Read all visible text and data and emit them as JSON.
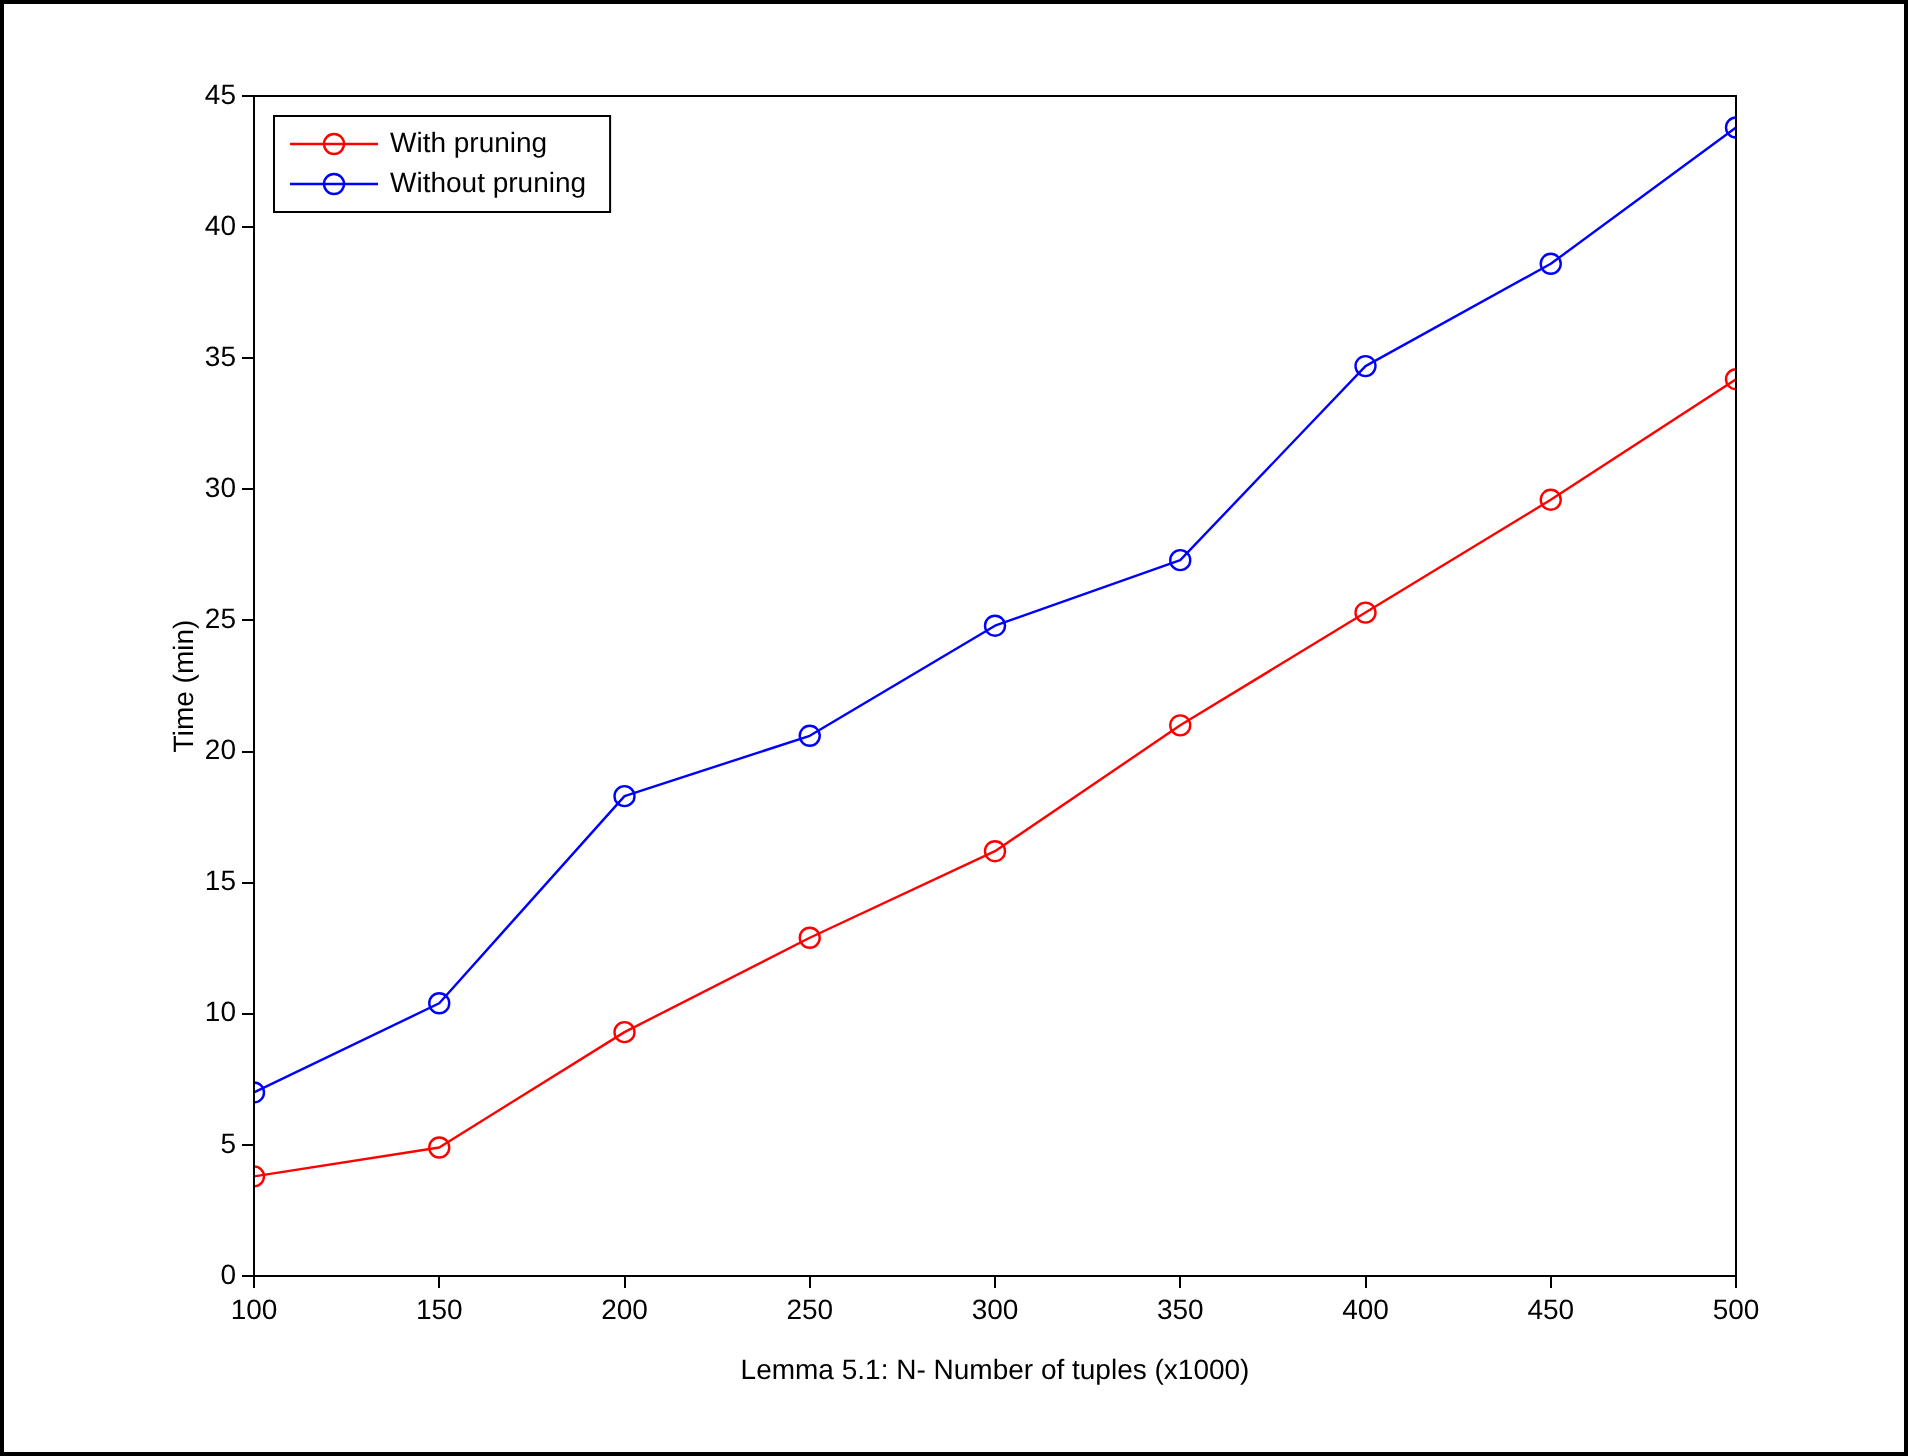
{
  "chart_data": {
    "type": "line",
    "xlabel": "Lemma 5.1: N- Number of tuples (x1000)",
    "ylabel": "Time (min)",
    "x": [
      100,
      150,
      200,
      250,
      300,
      350,
      400,
      450,
      500
    ],
    "series": [
      {
        "name": "With pruning",
        "color": "#ff0000",
        "values": [
          3.8,
          4.9,
          9.3,
          12.9,
          16.2,
          21.0,
          25.3,
          29.6,
          34.2
        ]
      },
      {
        "name": "Without pruning",
        "color": "#0000ff",
        "values": [
          7.0,
          10.4,
          18.3,
          20.6,
          24.8,
          27.3,
          34.7,
          38.6,
          43.8
        ]
      }
    ],
    "xlim": [
      100,
      500
    ],
    "xticks": [
      100,
      150,
      200,
      250,
      300,
      350,
      400,
      450,
      500
    ],
    "ylim": [
      0,
      45
    ],
    "yticks": [
      0,
      5,
      10,
      15,
      20,
      25,
      30,
      35,
      40,
      45
    ],
    "grid": false,
    "legend": "top left",
    "marker": "circle",
    "line_style": "solid"
  }
}
